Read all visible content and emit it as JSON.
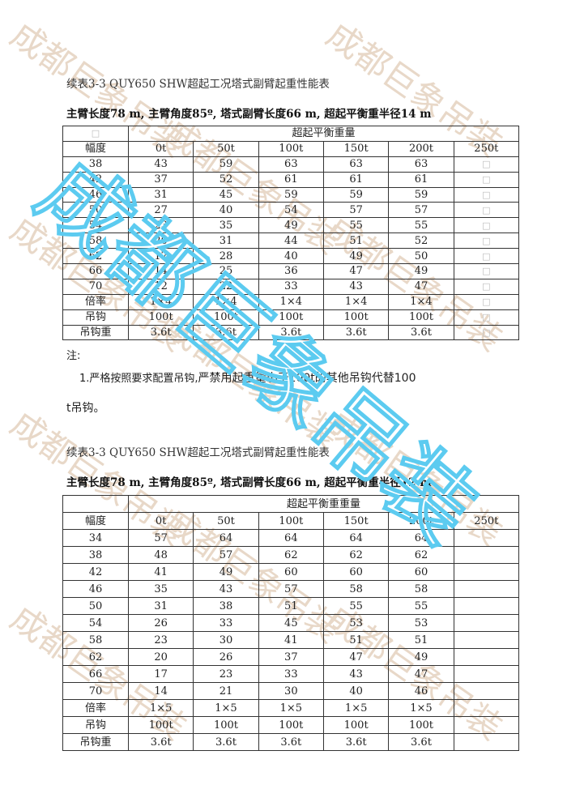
{
  "watermark": "成都巨象吊装",
  "watermark_colors": {
    "tile": "#e8d8c8",
    "overlay": "#5ccbf0"
  },
  "sections": [
    {
      "title": "续表3-3 QUY650 SHW超起工况塔式副臂起重性能表",
      "subtitle": "主臂长度78 m, 主臂角度85º, 塔式副臂长度66 m, 超起平衡重半径14 m",
      "corner": "□",
      "group_header": "超起平衡重量",
      "row_header": "幅度",
      "columns": [
        "0t",
        "50t",
        "100t",
        "150t",
        "200t",
        "250t"
      ],
      "rows": [
        [
          "38",
          "43",
          "59",
          "63",
          "63",
          "63",
          "□"
        ],
        [
          "42",
          "37",
          "52",
          "61",
          "61",
          "61",
          "□"
        ],
        [
          "46",
          "31",
          "45",
          "59",
          "59",
          "59",
          "□"
        ],
        [
          "50",
          "27",
          "40",
          "54",
          "57",
          "57",
          "□"
        ],
        [
          "54",
          "23",
          "35",
          "49",
          "55",
          "55",
          "□"
        ],
        [
          "58",
          "20",
          "31",
          "44",
          "51",
          "52",
          "□"
        ],
        [
          "62",
          "17",
          "28",
          "40",
          "49",
          "50",
          "□"
        ],
        [
          "66",
          "14",
          "25",
          "36",
          "47",
          "49",
          "□"
        ],
        [
          "70",
          "12",
          "22",
          "33",
          "43",
          "47",
          "□"
        ],
        [
          "倍率",
          "1×4",
          "1×4",
          "1×4",
          "1×4",
          "1×4",
          "□"
        ],
        [
          "吊钩",
          "100t",
          "100t",
          "100t",
          "100t",
          "100t",
          "□"
        ],
        [
          "吊钩重",
          "3.6t",
          "3.6t",
          "3.6t",
          "3.6t",
          "3.6t",
          "□"
        ]
      ],
      "note_label": "注:",
      "note_prefix": "1.严格按照要求配置吊钩,",
      "note_main": "严禁用起重量小于100t的其他吊钩代替100",
      "note_cont": "t吊钩。"
    },
    {
      "title": "续表3-3 QUY650 SHW超起工况塔式副臂起重性能表",
      "subtitle": "主臂长度78 m, 主臂角度85º, 塔式副臂长度66 m, 超起平衡重半径12 m",
      "corner": "",
      "group_header": "超起平衡重重量",
      "row_header": "幅度",
      "columns": [
        "0t",
        "50t",
        "100t",
        "150t",
        "200t",
        "250t"
      ],
      "rows": [
        [
          "34",
          "57",
          "64",
          "64",
          "64",
          "64",
          ""
        ],
        [
          "38",
          "48",
          "57",
          "62",
          "62",
          "62",
          ""
        ],
        [
          "42",
          "41",
          "49",
          "60",
          "60",
          "60",
          ""
        ],
        [
          "46",
          "35",
          "43",
          "57",
          "58",
          "58",
          ""
        ],
        [
          "50",
          "31",
          "38",
          "51",
          "55",
          "55",
          ""
        ],
        [
          "54",
          "26",
          "33",
          "45",
          "53",
          "53",
          ""
        ],
        [
          "58",
          "23",
          "30",
          "41",
          "51",
          "51",
          ""
        ],
        [
          "62",
          "20",
          "26",
          "37",
          "47",
          "49",
          ""
        ],
        [
          "66",
          "17",
          "23",
          "33",
          "43",
          "47",
          ""
        ],
        [
          "70",
          "14",
          "21",
          "30",
          "40",
          "46",
          ""
        ],
        [
          "倍率",
          "1×5",
          "1×5",
          "1×5",
          "1×5",
          "1×5",
          ""
        ],
        [
          "吊钩",
          "100t",
          "100t",
          "100t",
          "100t",
          "100t",
          ""
        ],
        [
          "吊钩重",
          "3.6t",
          "3.6t",
          "3.6t",
          "3.6t",
          "3.6t",
          ""
        ]
      ]
    }
  ]
}
